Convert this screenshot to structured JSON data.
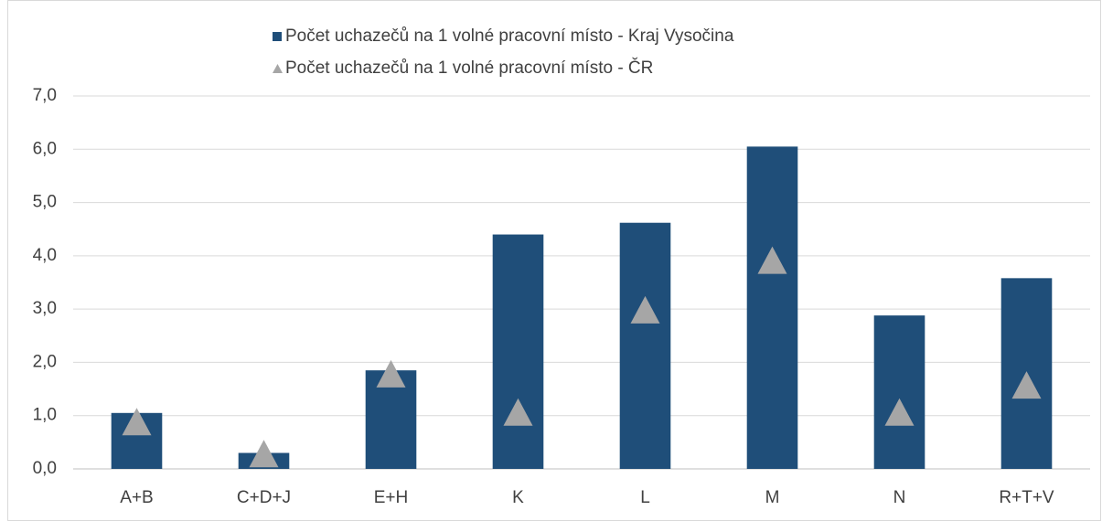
{
  "chart_data": {
    "type": "bar",
    "categories": [
      "A+B",
      "C+D+J",
      "E+H",
      "K",
      "L",
      "M",
      "N",
      "R+T+V"
    ],
    "series": [
      {
        "name": "Počet uchazečů na 1 volné pracovní místo - Kraj Vysočina",
        "type": "bar",
        "color": "#1f4e79",
        "values": [
          1.05,
          0.3,
          1.85,
          4.4,
          4.62,
          6.05,
          2.88,
          3.58
        ]
      },
      {
        "name": "Počet uchazečů na 1 volné pracovní místo - ČR",
        "type": "scatter",
        "color": "#a6a6a6",
        "values": [
          0.87,
          0.27,
          1.77,
          1.05,
          2.97,
          3.9,
          1.05,
          1.56
        ]
      }
    ],
    "ylim": [
      0,
      7
    ],
    "yticks": [
      {
        "value": 0,
        "label": "0,0"
      },
      {
        "value": 1,
        "label": "1,0"
      },
      {
        "value": 2,
        "label": "2,0"
      },
      {
        "value": 3,
        "label": "3,0"
      },
      {
        "value": 4,
        "label": "4,0"
      },
      {
        "value": 5,
        "label": "5,0"
      },
      {
        "value": 6,
        "label": "6,0"
      },
      {
        "value": 7,
        "label": "7,0"
      }
    ],
    "grid": true,
    "legend": "top"
  }
}
